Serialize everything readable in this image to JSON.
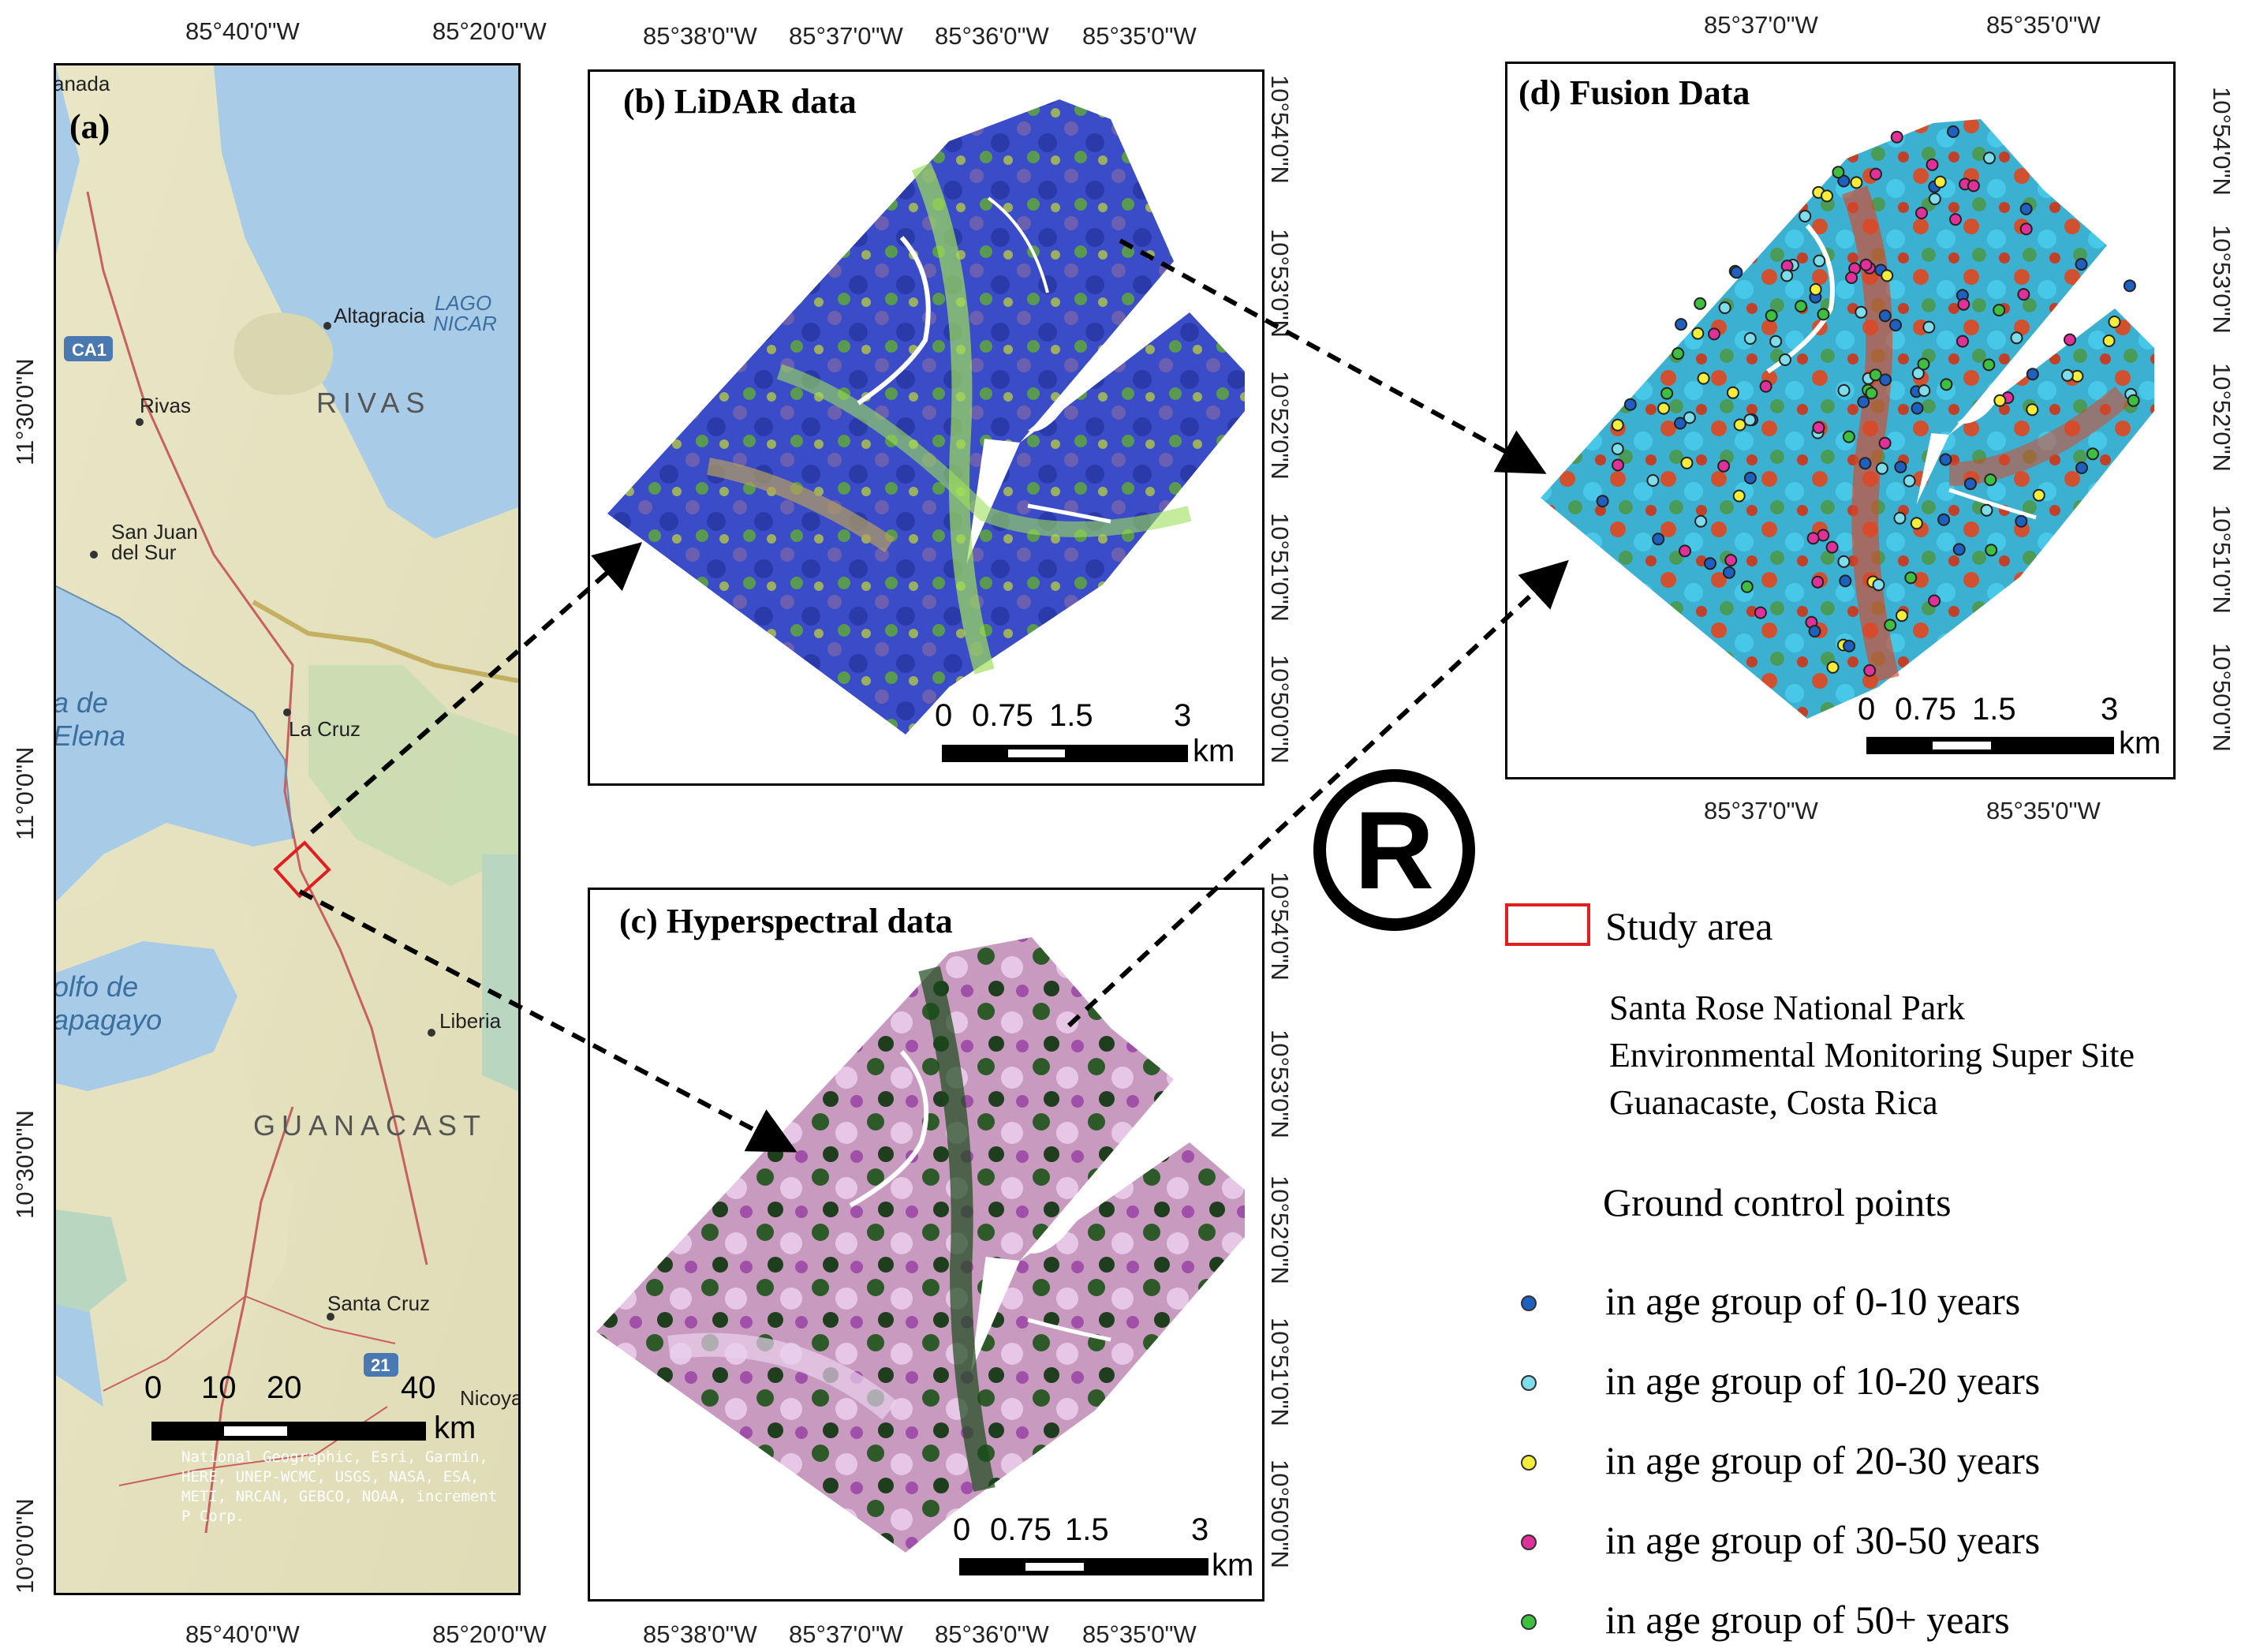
{
  "panel_a": {
    "label": "(a)",
    "top_ticks": [
      "85°40'0\"W",
      "85°20'0\"W"
    ],
    "bottom_ticks": [
      "85°40'0\"W",
      "85°20'0\"W"
    ],
    "left_ticks": [
      "11°30'0\"N",
      "11°0'0\"N",
      "10°30'0\"N",
      "10°0'0\"N"
    ],
    "places": [
      "Altagracia",
      "Rivas",
      "San Juan",
      "del Sur",
      "La Cruz",
      "Liberia",
      "Santa Cruz",
      "Nicoya",
      "anada"
    ],
    "regions": [
      "RIVAS",
      "GUANACAST"
    ],
    "water": [
      "LAGO",
      "NICAR",
      "a de",
      "Elena",
      "olfo de",
      "apagayo"
    ],
    "roads": [
      "CA1",
      "21"
    ],
    "scalebar": {
      "labels": [
        "0",
        "10",
        "20",
        "40"
      ],
      "unit": "km"
    },
    "credit": "National Geographic, Esri, Garmin, HERE, UNEP-WCMC, USGS, NASA, ESA, METI, NRCAN, GEBCO, NOAA, increment P Corp."
  },
  "panel_b": {
    "title": "(b) LiDAR data",
    "top_ticks": [
      "85°38'0\"W",
      "85°37'0\"W",
      "85°36'0\"W",
      "85°35'0\"W"
    ],
    "right_ticks": [
      "10°54'0\"N",
      "10°53'0\"N",
      "10°52'0\"N",
      "10°51'0\"N",
      "10°50'0\"N"
    ],
    "scalebar": {
      "labels": [
        "0",
        "0.75",
        "1.5",
        "3"
      ],
      "unit": "km"
    }
  },
  "panel_c": {
    "title": "(c) Hyperspectral  data",
    "bottom_ticks": [
      "85°38'0\"W",
      "85°37'0\"W",
      "85°36'0\"W",
      "85°35'0\"W"
    ],
    "right_ticks": [
      "10°54'0\"N",
      "10°53'0\"N",
      "10°52'0\"N",
      "10°51'0\"N",
      "10°50'0\"N"
    ],
    "scalebar": {
      "labels": [
        "0",
        "0.75",
        "1.5",
        "3"
      ],
      "unit": "km"
    }
  },
  "panel_d": {
    "title": "(d) Fusion Data",
    "top_ticks": [
      "85°37'0\"W",
      "85°35'0\"W"
    ],
    "bottom_ticks": [
      "85°37'0\"W",
      "85°35'0\"W"
    ],
    "right_ticks": [
      "10°54'0\"N",
      "10°53'0\"N",
      "10°52'0\"N",
      "10°51'0\"N",
      "10°50'0\"N"
    ],
    "scalebar": {
      "labels": [
        "0",
        "0.75",
        "1.5",
        "3"
      ],
      "unit": "km"
    }
  },
  "symbol": "®",
  "legend": {
    "study_area": "Study area",
    "site_lines": [
      "Santa Rose National Park",
      "Environmental Monitoring Super Site",
      "Guanacaste, Costa Rica"
    ],
    "gcp_title": "Ground control points",
    "groups": [
      {
        "label": " in age group of 0-10 years",
        "color": "#1f5fbf"
      },
      {
        "label": " in age group of 10-20 years",
        "color": "#7fdcea"
      },
      {
        "label": " in age group of 20-30 years",
        "color": "#f4ee3a"
      },
      {
        "label": " in age group of 30-50 years",
        "color": "#e0309a"
      },
      {
        "label": " in age group of 50+ years",
        "color": "#3fbf3f"
      }
    ]
  },
  "colors": {
    "study_area_box": "#e02020",
    "sea": "#a8cbe8",
    "land": "#e8e4c4"
  }
}
